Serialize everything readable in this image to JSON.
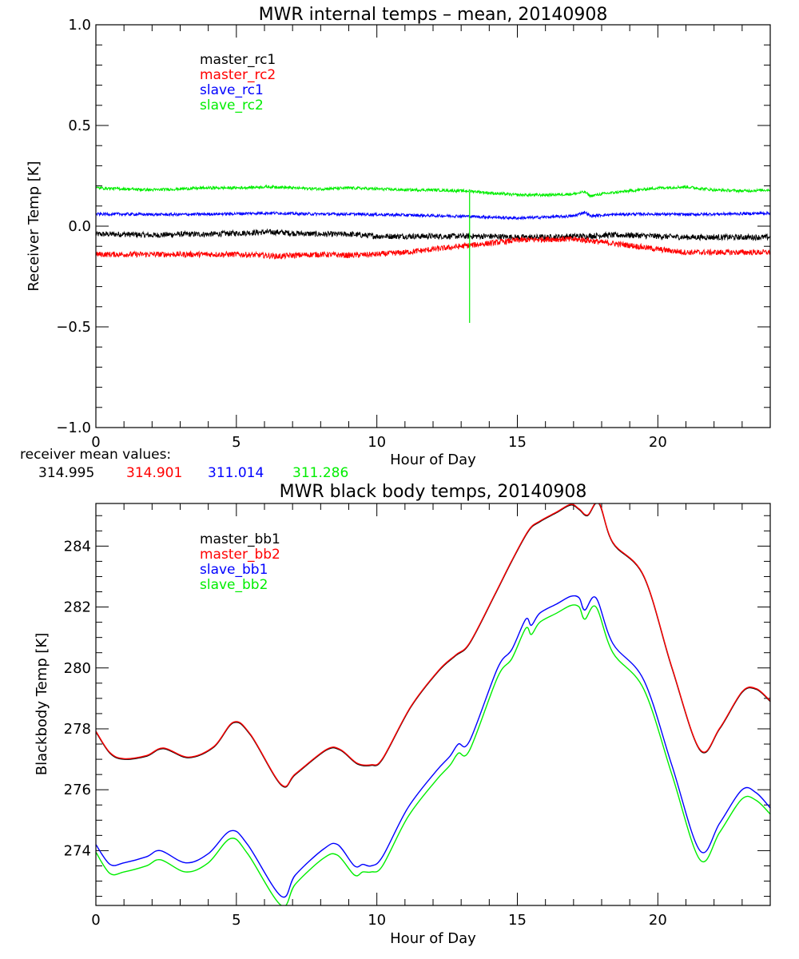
{
  "chart_data": [
    {
      "type": "line",
      "title": "MWR internal temps – mean, 20140908",
      "xlabel": "Hour of Day",
      "ylabel": "Receiver Temp [K]",
      "xlim": [
        0,
        24
      ],
      "ylim": [
        -1.0,
        1.0
      ],
      "x_ticks": [
        0,
        5,
        10,
        15,
        20
      ],
      "x_tick_labels": [
        "0",
        "5",
        "10",
        "15",
        "20"
      ],
      "y_ticks": [
        -1.0,
        -0.5,
        0.0,
        0.5,
        1.0
      ],
      "y_tick_labels": [
        "−1.0",
        "−0.5",
        "0.0",
        "0.5",
        "1.0"
      ],
      "legend_position": "top-left",
      "series": [
        {
          "name": "master_rc1",
          "color": "#000000",
          "noise": 0.014,
          "x": [
            0,
            1,
            2,
            3,
            4,
            5,
            6,
            6.5,
            7,
            8,
            9,
            10,
            11,
            12,
            13,
            14,
            15,
            16,
            17,
            17.5,
            18,
            19,
            20,
            21,
            22,
            23,
            24
          ],
          "y": [
            -0.04,
            -0.04,
            -0.045,
            -0.04,
            -0.04,
            -0.035,
            -0.03,
            -0.03,
            -0.035,
            -0.04,
            -0.04,
            -0.05,
            -0.05,
            -0.05,
            -0.05,
            -0.05,
            -0.055,
            -0.055,
            -0.05,
            -0.05,
            -0.045,
            -0.045,
            -0.05,
            -0.055,
            -0.055,
            -0.055,
            -0.055
          ]
        },
        {
          "name": "master_rc2",
          "color": "#ff0000",
          "noise": 0.014,
          "x": [
            0,
            1,
            2,
            3,
            4,
            5,
            6,
            6.5,
            7,
            8,
            9,
            10,
            11,
            12,
            13,
            14,
            15,
            16,
            17,
            17.5,
            18,
            19,
            20,
            21,
            22,
            23,
            24
          ],
          "y": [
            -0.14,
            -0.14,
            -0.14,
            -0.14,
            -0.14,
            -0.14,
            -0.145,
            -0.15,
            -0.145,
            -0.14,
            -0.145,
            -0.14,
            -0.13,
            -0.115,
            -0.1,
            -0.085,
            -0.07,
            -0.065,
            -0.065,
            -0.07,
            -0.08,
            -0.095,
            -0.115,
            -0.13,
            -0.13,
            -0.13,
            -0.13
          ]
        },
        {
          "name": "slave_rc1",
          "color": "#0000ff",
          "noise": 0.007,
          "x": [
            0,
            1,
            2,
            3,
            4,
            5,
            6,
            6.5,
            7,
            8,
            9,
            10,
            11,
            12,
            13,
            14,
            15,
            16,
            17,
            17.4,
            17.6,
            18,
            19,
            20,
            21,
            22,
            23,
            24
          ],
          "y": [
            0.06,
            0.06,
            0.058,
            0.058,
            0.06,
            0.062,
            0.065,
            0.065,
            0.062,
            0.06,
            0.06,
            0.058,
            0.055,
            0.052,
            0.05,
            0.045,
            0.04,
            0.045,
            0.05,
            0.07,
            0.05,
            0.055,
            0.06,
            0.06,
            0.058,
            0.06,
            0.062,
            0.065
          ]
        },
        {
          "name": "slave_rc2",
          "color": "#00ff00",
          "noise": 0.007,
          "x": [
            0,
            1,
            2,
            3,
            4,
            5,
            6,
            6.5,
            7,
            8,
            9,
            10,
            11,
            12,
            13,
            13.3,
            14,
            15,
            16,
            17,
            17.4,
            17.6,
            18,
            19,
            20,
            21,
            22,
            23,
            24
          ],
          "y": [
            0.19,
            0.185,
            0.18,
            0.185,
            0.19,
            0.19,
            0.195,
            0.195,
            0.19,
            0.185,
            0.19,
            0.185,
            0.18,
            0.18,
            0.175,
            0.175,
            0.165,
            0.155,
            0.155,
            0.16,
            0.17,
            0.15,
            0.16,
            0.175,
            0.19,
            0.195,
            0.18,
            0.175,
            0.18
          ],
          "spike": {
            "x": 13.3,
            "y_min": -0.48,
            "y_max": 0.17
          }
        }
      ],
      "footnote": {
        "label": "receiver mean values:",
        "values": [
          "314.995",
          "314.901",
          "311.014",
          "311.286"
        ],
        "colors": [
          "#000000",
          "#ff0000",
          "#0000ff",
          "#00ff00"
        ]
      }
    },
    {
      "type": "line",
      "title": "MWR black body temps, 20140908",
      "xlabel": "Hour of Day",
      "ylabel": "Blackbody Temp [K]",
      "xlim": [
        0,
        24
      ],
      "ylim": [
        272.2,
        285.4
      ],
      "x_ticks": [
        0,
        5,
        10,
        15,
        20
      ],
      "x_tick_labels": [
        "0",
        "5",
        "10",
        "15",
        "20"
      ],
      "y_ticks": [
        274,
        276,
        278,
        280,
        282,
        284
      ],
      "y_tick_labels": [
        "274",
        "276",
        "278",
        "280",
        "282",
        "284"
      ],
      "legend_position": "top-left",
      "series": [
        {
          "name": "master_bb1",
          "color": "#000000",
          "offset": 0,
          "x": [
            0,
            0.5,
            1,
            1.8,
            2.4,
            3.3,
            4.2,
            4.9,
            5.5,
            6.6,
            7.1,
            8.2,
            8.7,
            9.3,
            9.8,
            10.2,
            11.2,
            12.2,
            12.8,
            13.3,
            14.2,
            14.8,
            15.4,
            15.8,
            16.4,
            16.9,
            17.2,
            17.5,
            17.9,
            18.4,
            19.5,
            20.5,
            21.5,
            22.2,
            23.0,
            23.5,
            24
          ],
          "y": [
            277.9,
            277.2,
            277.0,
            277.1,
            277.35,
            277.05,
            277.4,
            278.2,
            277.8,
            276.15,
            276.5,
            277.3,
            277.3,
            276.85,
            276.8,
            277.0,
            278.7,
            279.9,
            280.4,
            280.8,
            282.4,
            283.5,
            284.5,
            284.8,
            285.1,
            285.35,
            285.2,
            285.0,
            285.4,
            284.1,
            283.0,
            280.0,
            277.3,
            278.0,
            279.2,
            279.3,
            278.9
          ]
        },
        {
          "name": "master_bb2",
          "color": "#ff0000",
          "offset": 0.02,
          "x": [
            0,
            0.5,
            1,
            1.8,
            2.4,
            3.3,
            4.2,
            4.9,
            5.5,
            6.6,
            7.1,
            8.2,
            8.7,
            9.3,
            9.8,
            10.2,
            11.2,
            12.2,
            12.8,
            13.3,
            14.2,
            14.8,
            15.4,
            15.8,
            16.4,
            16.9,
            17.2,
            17.5,
            17.9,
            18.4,
            19.5,
            20.5,
            21.5,
            22.2,
            23.0,
            23.5,
            24
          ],
          "y": [
            277.9,
            277.2,
            277.0,
            277.1,
            277.35,
            277.05,
            277.4,
            278.2,
            277.8,
            276.15,
            276.5,
            277.3,
            277.3,
            276.85,
            276.8,
            277.0,
            278.7,
            279.9,
            280.4,
            280.8,
            282.4,
            283.5,
            284.5,
            284.8,
            285.1,
            285.35,
            285.2,
            285.0,
            285.4,
            284.1,
            283.0,
            280.0,
            277.3,
            278.0,
            279.2,
            279.3,
            278.9
          ]
        },
        {
          "name": "slave_bb1",
          "color": "#0000ff",
          "offset": 0,
          "x": [
            0,
            0.5,
            1,
            1.8,
            2.3,
            3.2,
            4.0,
            4.8,
            5.4,
            6.6,
            7.1,
            8.1,
            8.6,
            9.2,
            9.5,
            9.8,
            10.2,
            11.1,
            12.1,
            12.6,
            12.9,
            13.3,
            14.3,
            14.8,
            15.3,
            15.5,
            15.8,
            16.4,
            16.9,
            17.2,
            17.4,
            17.8,
            18.4,
            19.5,
            20.5,
            21.5,
            22.2,
            23.0,
            23.5,
            24
          ],
          "y": [
            274.2,
            273.55,
            273.6,
            273.8,
            274.0,
            273.6,
            273.9,
            274.65,
            274.2,
            272.5,
            273.2,
            274.05,
            274.2,
            273.5,
            273.55,
            273.5,
            273.8,
            275.4,
            276.6,
            277.1,
            277.5,
            277.6,
            280.0,
            280.6,
            281.6,
            281.4,
            281.8,
            282.1,
            282.35,
            282.3,
            281.9,
            282.3,
            280.8,
            279.6,
            276.8,
            274.0,
            274.9,
            276.0,
            275.9,
            275.4
          ]
        },
        {
          "name": "slave_bb2",
          "color": "#00ff00",
          "offset": 0,
          "x": [
            0,
            0.5,
            1,
            1.8,
            2.3,
            3.2,
            4.0,
            4.8,
            5.4,
            6.6,
            7.1,
            8.1,
            8.6,
            9.2,
            9.5,
            9.8,
            10.2,
            11.1,
            12.1,
            12.6,
            12.9,
            13.3,
            14.3,
            14.8,
            15.3,
            15.5,
            15.8,
            16.4,
            16.9,
            17.2,
            17.4,
            17.8,
            18.4,
            19.5,
            20.5,
            21.5,
            22.2,
            23.0,
            23.5,
            24
          ],
          "y": [
            273.95,
            273.25,
            273.3,
            273.5,
            273.7,
            273.3,
            273.6,
            274.4,
            273.9,
            272.2,
            272.9,
            273.75,
            273.85,
            273.2,
            273.3,
            273.3,
            273.5,
            275.1,
            276.3,
            276.8,
            277.2,
            277.3,
            279.7,
            280.3,
            281.3,
            281.1,
            281.5,
            281.8,
            282.05,
            282.0,
            281.6,
            282.0,
            280.5,
            279.3,
            276.5,
            273.7,
            274.6,
            275.7,
            275.65,
            275.2
          ]
        }
      ]
    }
  ]
}
